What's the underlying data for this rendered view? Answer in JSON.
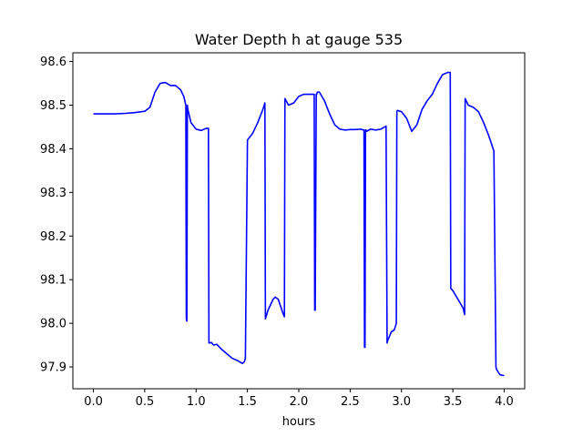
{
  "chart_data": {
    "type": "line",
    "title": "Water Depth h at gauge 535",
    "xlabel": "hours",
    "ylabel": "",
    "xlim": [
      -0.2,
      4.2
    ],
    "ylim": [
      97.85,
      98.62
    ],
    "xticks": [
      0.0,
      0.5,
      1.0,
      1.5,
      2.0,
      2.5,
      3.0,
      3.5,
      4.0
    ],
    "xtick_labels": [
      "0.0",
      "0.5",
      "1.0",
      "1.5",
      "2.0",
      "2.5",
      "3.0",
      "3.5",
      "4.0"
    ],
    "yticks": [
      97.9,
      98.0,
      98.1,
      98.2,
      98.3,
      98.4,
      98.5,
      98.6
    ],
    "ytick_labels": [
      "97.9",
      "98.0",
      "98.1",
      "98.2",
      "98.3",
      "98.4",
      "98.5",
      "98.6"
    ],
    "grid": false,
    "series": [
      {
        "color": "#0000ff",
        "x": [
          0.0,
          0.1,
          0.2,
          0.3,
          0.4,
          0.5,
          0.55,
          0.6,
          0.65,
          0.7,
          0.75,
          0.8,
          0.85,
          0.88,
          0.9,
          0.905,
          0.91,
          0.915,
          0.92,
          0.95,
          1.0,
          1.05,
          1.08,
          1.1,
          1.12,
          1.125,
          1.13,
          1.15,
          1.17,
          1.2,
          1.25,
          1.3,
          1.35,
          1.4,
          1.45,
          1.47,
          1.48,
          1.5,
          1.55,
          1.6,
          1.65,
          1.67,
          1.675,
          1.7,
          1.75,
          1.77,
          1.8,
          1.85,
          1.86,
          1.865,
          1.9,
          1.95,
          2.0,
          2.05,
          2.1,
          2.15,
          2.155,
          2.16,
          2.17,
          2.175,
          2.18,
          2.2,
          2.25,
          2.3,
          2.35,
          2.4,
          2.45,
          2.5,
          2.55,
          2.6,
          2.635,
          2.64,
          2.645,
          2.65,
          2.655,
          2.66,
          2.7,
          2.75,
          2.8,
          2.85,
          2.86,
          2.865,
          2.9,
          2.93,
          2.95,
          2.955,
          2.96,
          3.0,
          3.05,
          3.1,
          3.15,
          3.2,
          3.25,
          3.3,
          3.35,
          3.4,
          3.45,
          3.475,
          3.48,
          3.5,
          3.55,
          3.6,
          3.615,
          3.62,
          3.65,
          3.7,
          3.75,
          3.8,
          3.85,
          3.9,
          3.92,
          3.925,
          3.95,
          3.96,
          4.0
        ],
        "y": [
          98.48,
          98.48,
          98.48,
          98.481,
          98.483,
          98.486,
          98.495,
          98.53,
          98.55,
          98.552,
          98.545,
          98.545,
          98.535,
          98.52,
          98.5,
          98.01,
          98.005,
          98.5,
          98.49,
          98.46,
          98.445,
          98.442,
          98.445,
          98.447,
          98.447,
          97.955,
          97.955,
          97.956,
          97.95,
          97.952,
          97.94,
          97.93,
          97.92,
          97.915,
          97.908,
          97.912,
          97.92,
          98.42,
          98.435,
          98.46,
          98.49,
          98.505,
          98.01,
          98.03,
          98.055,
          98.06,
          98.055,
          98.02,
          98.015,
          98.515,
          98.5,
          98.505,
          98.52,
          98.525,
          98.525,
          98.525,
          98.03,
          98.03,
          98.525,
          98.525,
          98.53,
          98.53,
          98.51,
          98.48,
          98.455,
          98.445,
          98.443,
          98.444,
          98.444,
          98.445,
          98.443,
          97.945,
          97.945,
          98.443,
          98.443,
          98.44,
          98.445,
          98.443,
          98.445,
          98.452,
          97.955,
          97.96,
          97.98,
          97.985,
          98.0,
          98.485,
          98.488,
          98.485,
          98.47,
          98.44,
          98.455,
          98.49,
          98.51,
          98.525,
          98.55,
          98.57,
          98.575,
          98.575,
          98.08,
          98.075,
          98.055,
          98.035,
          98.02,
          98.515,
          98.5,
          98.495,
          98.485,
          98.46,
          98.43,
          98.395,
          97.9,
          97.895,
          97.885,
          97.882,
          97.88
        ]
      }
    ]
  }
}
